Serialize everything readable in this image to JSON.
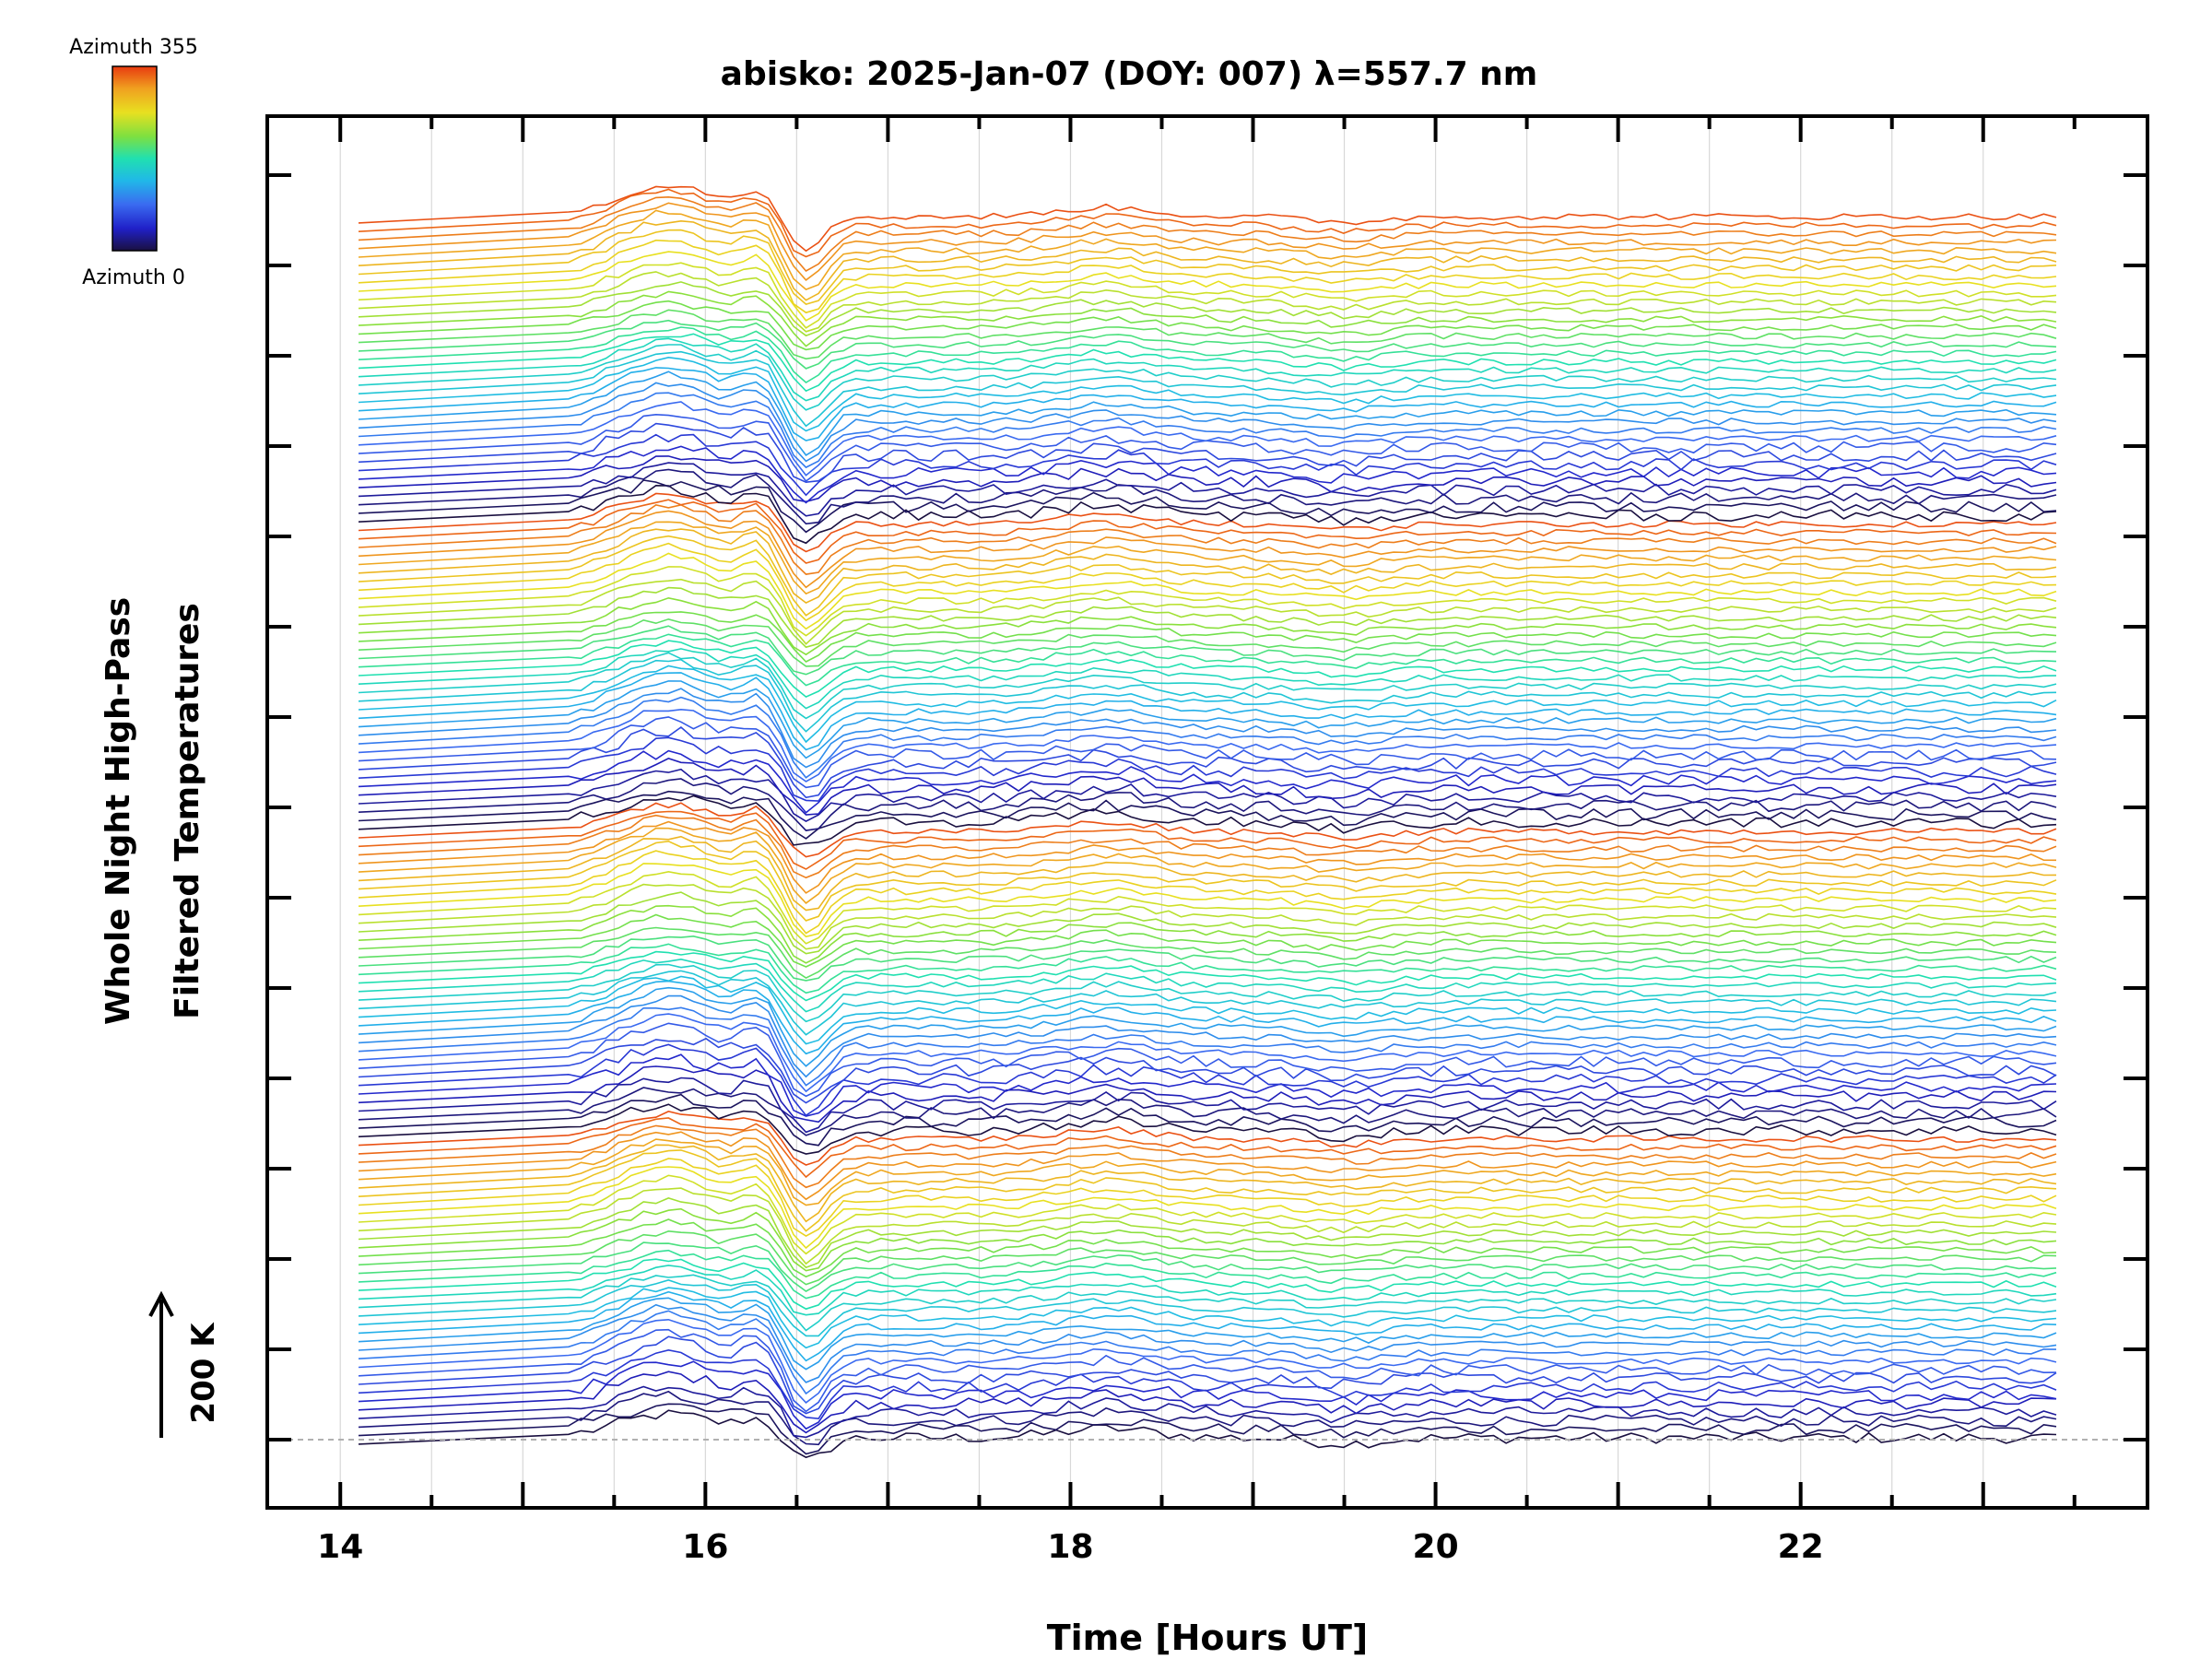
{
  "chart_data": {
    "type": "line",
    "title": "abisko: 2025-Jan-07 (DOY: 007) λ=557.7 nm",
    "xlabel": "Time [Hours UT]",
    "ylabel_line1": "Whole Night High-Pass",
    "ylabel_line2": "Filtered Temperatures",
    "xlim": [
      13.6,
      23.9
    ],
    "x_ticks": [
      14,
      16,
      18,
      20,
      22
    ],
    "x_tick_labels": [
      "14",
      "16",
      "18",
      "20",
      "22"
    ],
    "x_start": 14.1,
    "x_end": 23.4,
    "grid": true,
    "scale_bar": {
      "label": "200 K"
    },
    "legend": {
      "type": "colorbar",
      "placement": "top-left",
      "top_label": "Azimuth 355",
      "bottom_label": "Azimuth 0",
      "colormap": [
        "#1a1040",
        "#2020c8",
        "#3a6af0",
        "#20b8e8",
        "#20e0b0",
        "#7ee040",
        "#e8e020",
        "#f0a020",
        "#e83a10"
      ]
    },
    "series_count": 144,
    "azimuth_range": [
      0,
      355
    ],
    "notes_visible": "Stacked keograms of filtered temperatures, one trace per azimuth, colored by azimuth"
  }
}
